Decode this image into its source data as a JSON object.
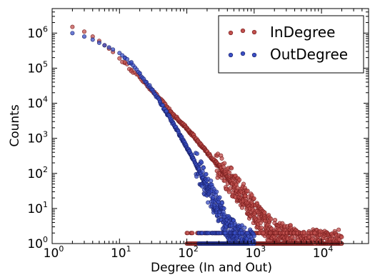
{
  "chart_data": {
    "type": "scatter",
    "title": "",
    "xlabel": "Degree (In and Out)",
    "ylabel": "Counts",
    "xscale": "log",
    "yscale": "log",
    "xlim": [
      1,
      50000
    ],
    "ylim": [
      1,
      5000000
    ],
    "grid": false,
    "legend_position": "top-right",
    "x_ticks": [
      {
        "base": "10",
        "exp": "0",
        "value": 1
      },
      {
        "base": "10",
        "exp": "1",
        "value": 10
      },
      {
        "base": "10",
        "exp": "2",
        "value": 100
      },
      {
        "base": "10",
        "exp": "3",
        "value": 1000
      },
      {
        "base": "10",
        "exp": "4",
        "value": 10000
      }
    ],
    "y_ticks": [
      {
        "base": "10",
        "exp": "0",
        "value": 1
      },
      {
        "base": "10",
        "exp": "1",
        "value": 10
      },
      {
        "base": "10",
        "exp": "2",
        "value": 100
      },
      {
        "base": "10",
        "exp": "3",
        "value": 1000
      },
      {
        "base": "10",
        "exp": "4",
        "value": 10000
      },
      {
        "base": "10",
        "exp": "5",
        "value": 100000
      },
      {
        "base": "10",
        "exp": "6",
        "value": 1000000
      }
    ],
    "series": [
      {
        "name": "InDegree",
        "color": "#c0504d",
        "stroke": "#7a1f1f",
        "x": [
          2,
          3,
          4,
          5,
          6,
          7,
          8,
          10,
          12,
          15,
          20,
          25,
          30,
          40,
          50,
          60,
          80,
          100,
          130,
          160,
          200,
          250,
          300,
          400,
          500,
          600,
          700,
          800,
          1000,
          1200,
          1500,
          2000,
          3000,
          5000,
          8000,
          12000,
          20000
        ],
        "y": [
          1500000,
          1100000,
          800000,
          600000,
          450000,
          360000,
          290000,
          190000,
          140000,
          90000,
          55000,
          35000,
          24000,
          13000,
          8000,
          5200,
          3000,
          1900,
          1100,
          650,
          400,
          240,
          160,
          80,
          45,
          30,
          20,
          15,
          8,
          5,
          3,
          2,
          1.5,
          1,
          1,
          1,
          1
        ]
      },
      {
        "name": "OutDegree",
        "color": "#3a4fc4",
        "stroke": "#1b236e",
        "x": [
          2,
          3,
          4,
          5,
          6,
          7,
          8,
          10,
          12,
          15,
          20,
          25,
          30,
          40,
          50,
          60,
          80,
          100,
          120,
          150,
          180,
          200,
          250,
          300,
          350,
          400,
          500,
          600,
          800,
          1000
        ],
        "y": [
          1000000,
          800000,
          650000,
          530000,
          450000,
          390000,
          340000,
          270000,
          200000,
          135000,
          70000,
          40000,
          25000,
          11000,
          5500,
          3000,
          1200,
          550,
          300,
          130,
          60,
          40,
          18,
          9,
          5,
          3,
          2,
          1.5,
          1,
          1
        ]
      }
    ],
    "floor_band_in_x": [
      100,
      8000
    ],
    "floor_band_out_x": [
      150,
      900
    ],
    "floor_band_value": 1
  }
}
